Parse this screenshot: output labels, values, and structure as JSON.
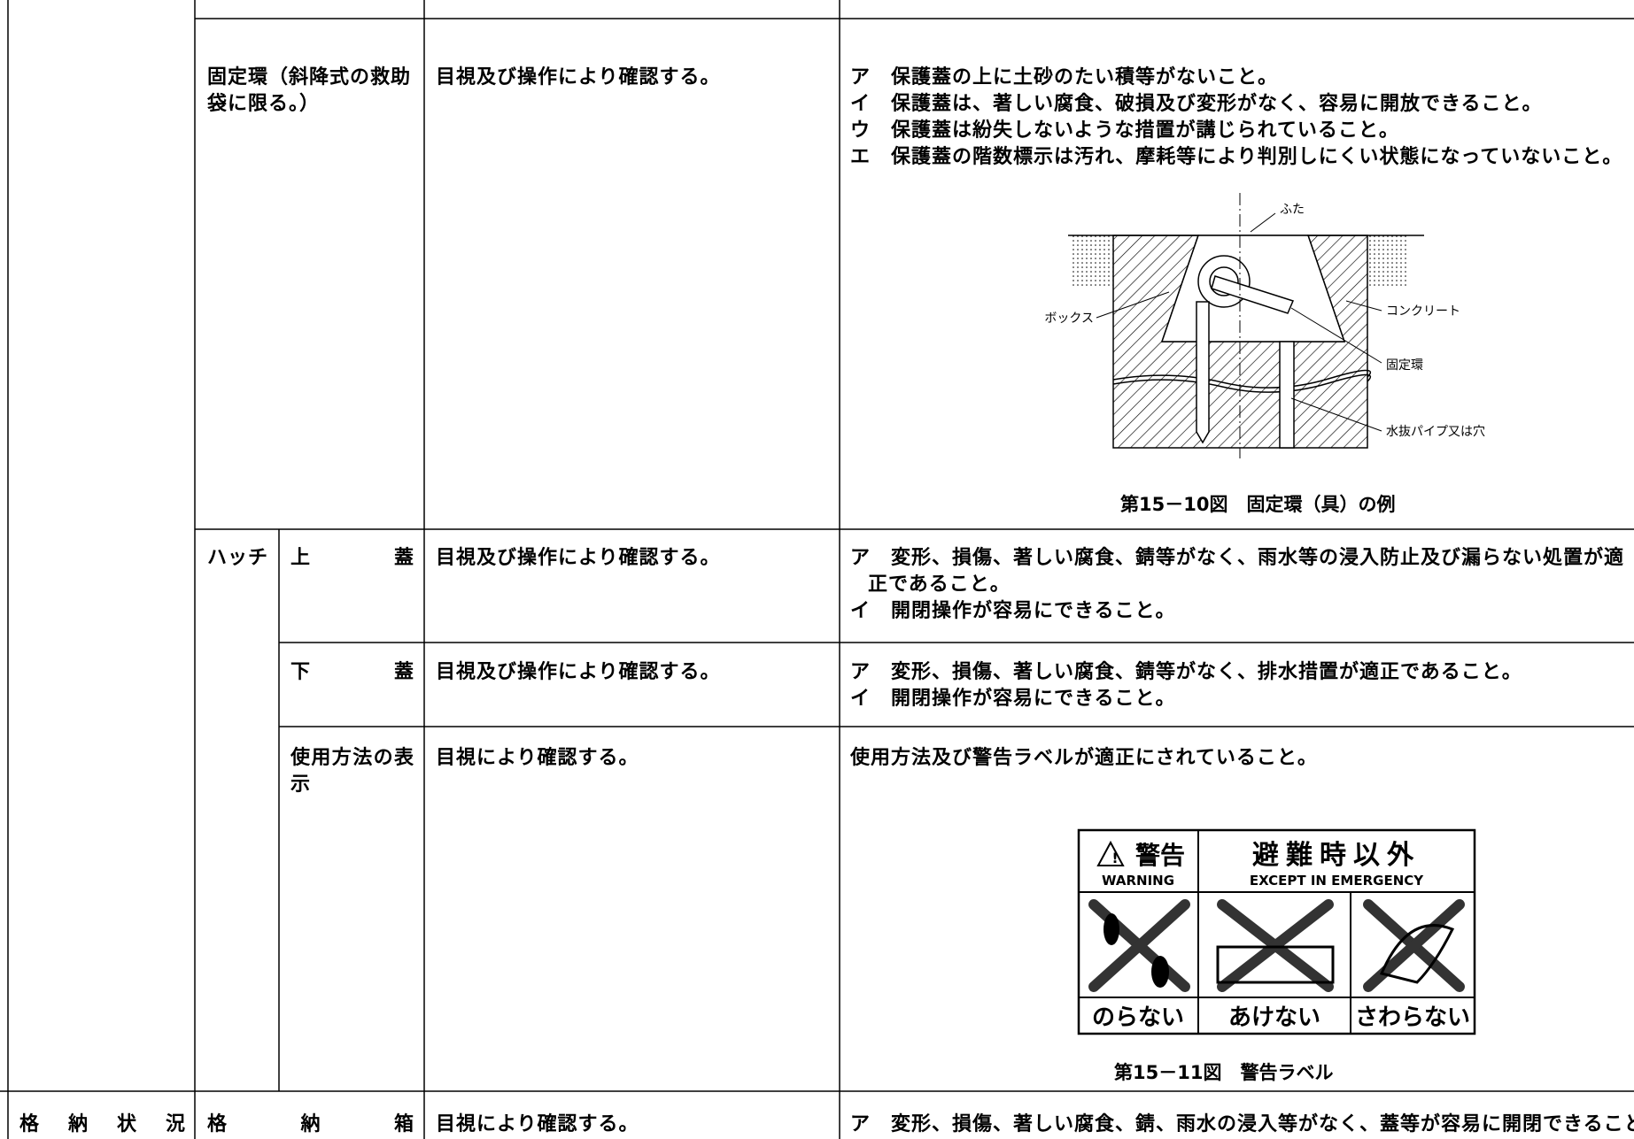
{
  "table": {
    "rows": [
      {
        "item": "固定環（斜降式の救助袋に限る。）",
        "method": "目視及び操作により確認する。",
        "criteria": [
          "ア　保護蓋の上に土砂のたい積等がないこと。",
          "イ　保護蓋は、著しい腐食、破損及び変形がなく、容易に開放できること。",
          "ウ　保護蓋は紛失しないような措置が講じられていること。",
          "エ　保護蓋の階数標示は汚れ、摩耗等により判別しにくい状態になっていないこと。"
        ],
        "figure": {
          "labels": {
            "lid": "ふた",
            "box": "ボックス",
            "concrete": "コンクリート",
            "ring": "固定環",
            "drain": "水抜パイプ又は穴"
          },
          "caption": "第15－10図　固定環（具）の例"
        }
      },
      {
        "group": "ハッチ",
        "item": "上蓋",
        "method": "目視及び操作により確認する。",
        "criteria": [
          "ア　変形、損傷、著しい腐食、錆等がなく、雨水等の浸入防止及び漏らない処置が適正であること。",
          "イ　開閉操作が容易にできること。"
        ]
      },
      {
        "item": "下蓋",
        "method": "目視及び操作により確認する。",
        "criteria": [
          "ア　変形、損傷、著しい腐食、錆等がなく、排水措置が適正であること。",
          "イ　開閉操作が容易にできること。"
        ]
      },
      {
        "item": "使用方法の表示",
        "method": "目視により確認する。",
        "criteria": [
          "使用方法及び警告ラベルが適正にされていること。"
        ],
        "figure": {
          "label": {
            "warning_jp": "警告",
            "warning_en": "WARNING",
            "except_jp": "避難時以外",
            "except_en": "EXCEPT IN EMERGENCY",
            "prohibitions": [
              "のらない",
              "あけない",
              "さわらない"
            ]
          },
          "caption": "第15－11図　警告ラベル"
        }
      },
      {
        "category": "格納状況",
        "item": "格納箱",
        "method": "目視により確認する。",
        "criteria": [
          "ア　変形、損傷、著しい腐食、錆、雨水の浸入等がなく、蓋等が容易に開閉できること。"
        ]
      }
    ]
  }
}
